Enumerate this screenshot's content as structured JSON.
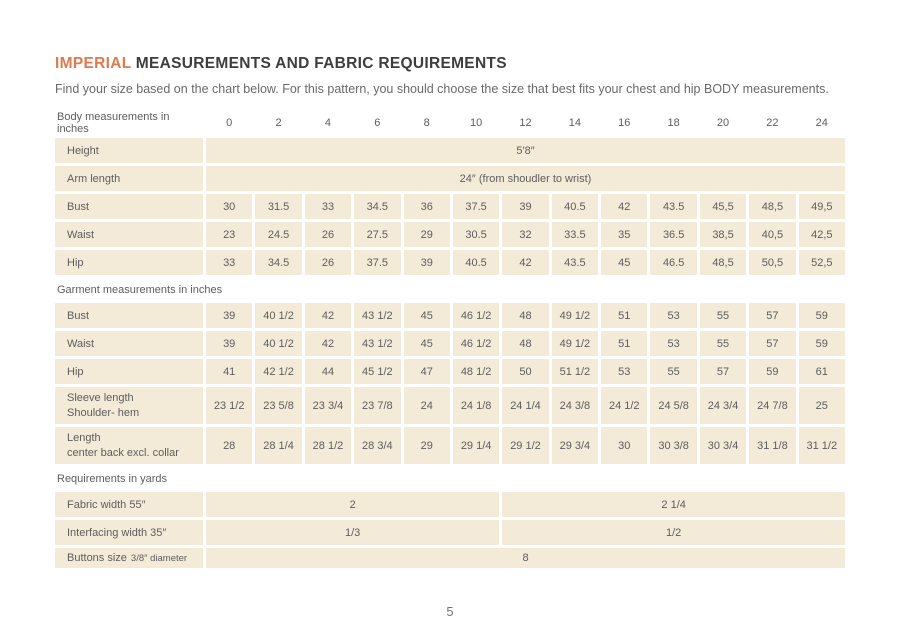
{
  "page": {
    "title_highlight": "IMPERIAL",
    "title_rest": " MEASUREMENTS AND FABRIC REQUIREMENTS",
    "subtitle": "Find your size based on the chart below. For this pattern, you should choose the size that best fits your chest and hip BODY measurements.",
    "page_number": "5",
    "accent_color": "#dd7a50",
    "cell_color": "#f4ead8"
  },
  "table": {
    "rows": [
      {
        "type": "header",
        "label": "Body measurements in inches",
        "values": [
          "0",
          "2",
          "4",
          "6",
          "8",
          "10",
          "12",
          "14",
          "16",
          "18",
          "20",
          "22",
          "24"
        ]
      },
      {
        "type": "span",
        "label": "Height",
        "value": "5′8″"
      },
      {
        "type": "span",
        "label": "Arm length",
        "value": "24″ (from shoudler to wrist)"
      },
      {
        "type": "cells",
        "label": "Bust",
        "values": [
          "30",
          "31.5",
          "33",
          "34.5",
          "36",
          "37.5",
          "39",
          "40.5",
          "42",
          "43.5",
          "45,5",
          "48,5",
          "49,5"
        ]
      },
      {
        "type": "cells",
        "label": "Waist",
        "values": [
          "23",
          "24.5",
          "26",
          "27.5",
          "29",
          "30.5",
          "32",
          "33.5",
          "35",
          "36.5",
          "38,5",
          "40,5",
          "42,5"
        ]
      },
      {
        "type": "cells",
        "label": "Hip",
        "values": [
          "33",
          "34.5",
          "26",
          "37.5",
          "39",
          "40.5",
          "42",
          "43.5",
          "45",
          "46.5",
          "48,5",
          "50,5",
          "52,5"
        ]
      },
      {
        "type": "section",
        "label": "Garment measurements in inches"
      },
      {
        "type": "cells",
        "label": "Bust",
        "values": [
          "39",
          "40 1/2",
          "42",
          "43 1/2",
          "45",
          "46 1/2",
          "48",
          "49 1/2",
          "51",
          "53",
          "55",
          "57",
          "59"
        ]
      },
      {
        "type": "cells",
        "label": "Waist",
        "values": [
          "39",
          "40 1/2",
          "42",
          "43 1/2",
          "45",
          "46 1/2",
          "48",
          "49 1/2",
          "51",
          "53",
          "55",
          "57",
          "59"
        ]
      },
      {
        "type": "cells",
        "label": "Hip",
        "values": [
          "41",
          "42 1/2",
          "44",
          "45 1/2",
          "47",
          "48 1/2",
          "50",
          "51 1/2",
          "53",
          "55",
          "57",
          "59",
          "61"
        ]
      },
      {
        "type": "cells",
        "tall": true,
        "label": "Sleeve length",
        "sublabel": "Shoulder- hem",
        "values": [
          "23 1/2",
          "23 5/8",
          "23 3/4",
          "23 7/8",
          "24",
          "24 1/8",
          "24 1/4",
          "24 3/8",
          "24 1/2",
          "24 5/8",
          "24 3/4",
          "24 7/8",
          "25"
        ]
      },
      {
        "type": "cells",
        "tall": true,
        "label": "Length",
        "sublabel": "center back excl. collar",
        "values": [
          "28",
          "28 1/4",
          "28 1/2",
          "28 3/4",
          "29",
          "29 1/4",
          "29 1/2",
          "29 3/4",
          "30",
          "30 3/8",
          "30 3/4",
          "31 1/8",
          "31 1/2"
        ]
      },
      {
        "type": "section",
        "label": "Requirements in yards"
      },
      {
        "type": "split",
        "label": "Fabric width 55″",
        "left": "2",
        "right": "2 1/4"
      },
      {
        "type": "split",
        "label": "Interfacing width 35″",
        "left": "1/3",
        "right": "1/2"
      },
      {
        "type": "span",
        "short": true,
        "label": "Buttons size",
        "label_small": "3/8″ diameter",
        "value": "8"
      }
    ]
  }
}
